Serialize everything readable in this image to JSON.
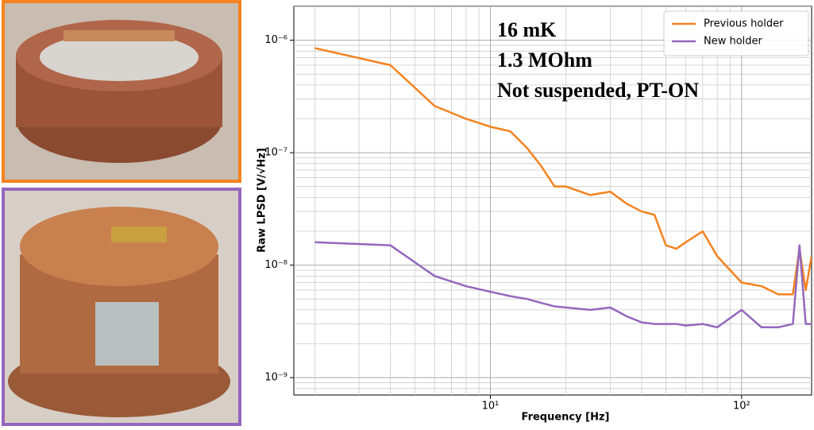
{
  "chart_data": {
    "type": "line",
    "xlabel": "Frequency [Hz]",
    "ylabel": "Raw LPSD [V/√Hz]",
    "annotations": [
      "16 mK",
      "1.3 MOhm",
      "Not suspended, PT-ON"
    ],
    "xscale": "log",
    "yscale": "log",
    "grid": true,
    "legend": "upper right",
    "xlim": [
      1.65,
      190
    ],
    "ylim": [
      7e-10,
      2e-06
    ],
    "xticks": [
      {
        "value": 10,
        "label": "10¹"
      },
      {
        "value": 100,
        "label": "10²"
      }
    ],
    "yticks": [
      {
        "value": 1e-09,
        "label": "10⁻⁹"
      },
      {
        "value": 1e-08,
        "label": "10⁻⁸"
      },
      {
        "value": 1e-07,
        "label": "10⁻⁷"
      },
      {
        "value": 1e-06,
        "label": "10⁻⁶"
      }
    ],
    "xminorticks": [
      2,
      3,
      4,
      5,
      6,
      7,
      8,
      9,
      20,
      30,
      40,
      50,
      60,
      70,
      80,
      90
    ],
    "yminorticks": [
      8e-10,
      9e-10,
      2e-09,
      3e-09,
      4e-09,
      5e-09,
      6e-09,
      7e-09,
      8e-09,
      9e-09,
      2e-08,
      3e-08,
      4e-08,
      5e-08,
      6e-08,
      7e-08,
      8e-08,
      9e-08,
      2e-07,
      3e-07,
      4e-07,
      5e-07,
      6e-07,
      7e-07,
      8e-07,
      9e-07,
      2e-06
    ],
    "x": [
      2,
      4,
      6,
      8,
      10,
      12,
      14,
      16,
      18,
      20,
      25,
      30,
      35,
      40,
      45,
      50,
      55,
      60,
      70,
      80,
      100,
      120,
      140,
      160,
      170,
      180,
      190
    ],
    "series": [
      {
        "name": "Previous holder",
        "color": "#f5821f",
        "values": [
          8.5e-07,
          6e-07,
          2.6e-07,
          2e-07,
          1.7e-07,
          1.55e-07,
          1.1e-07,
          7.5e-08,
          5e-08,
          5e-08,
          4.2e-08,
          4.5e-08,
          3.5e-08,
          3e-08,
          2.8e-08,
          1.5e-08,
          1.4e-08,
          1.6e-08,
          2e-08,
          1.2e-08,
          7e-09,
          6.5e-09,
          5.5e-09,
          5.5e-09,
          1.4e-08,
          6e-09,
          1.2e-08
        ]
      },
      {
        "name": "New holder",
        "color": "#9467bd",
        "values": [
          1.6e-08,
          1.5e-08,
          8e-09,
          6.5e-09,
          5.8e-09,
          5.3e-09,
          5e-09,
          4.6e-09,
          4.3e-09,
          4.2e-09,
          4e-09,
          4.2e-09,
          3.5e-09,
          3.1e-09,
          3e-09,
          3e-09,
          3e-09,
          2.9e-09,
          3e-09,
          2.8e-09,
          4e-09,
          2.8e-09,
          2.8e-09,
          3e-09,
          1.5e-08,
          3e-09,
          3e-09
        ]
      }
    ]
  }
}
